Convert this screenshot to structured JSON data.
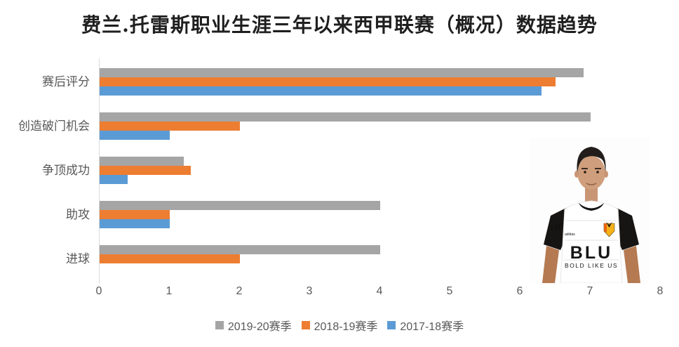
{
  "chart_data": {
    "type": "bar",
    "orientation": "horizontal",
    "title": "费兰.托雷斯职业生涯三年以来西甲联赛（概况）数据趋势",
    "categories": [
      "赛后评分",
      "创造破门机会",
      "争顶成功",
      "助攻",
      "进球"
    ],
    "series": [
      {
        "name": "2019-20赛季",
        "color": "#a5a5a5",
        "values": [
          6.9,
          7.0,
          1.2,
          4.0,
          4.0
        ]
      },
      {
        "name": "2018-19赛季",
        "color": "#ed7d31",
        "values": [
          6.5,
          2.0,
          1.3,
          1.0,
          2.0
        ]
      },
      {
        "name": "2017-18赛季",
        "color": "#5b9bd5",
        "values": [
          6.3,
          1.0,
          0.4,
          1.0,
          0
        ]
      }
    ],
    "xlim": [
      0,
      8
    ],
    "x_ticks": [
      "0",
      "1",
      "2",
      "3",
      "4",
      "5",
      "6",
      "7",
      "8"
    ],
    "legend_position": "bottom",
    "grid": false
  },
  "photo": {
    "brand": "adidas",
    "sponsor_line1": "BLU",
    "sponsor_line2": "BOLD LIKE US"
  },
  "colors": {
    "axis_line": "#d9d9d9",
    "tick_text": "#595959",
    "category_text": "#595959",
    "title_text": "#1f1f1f"
  }
}
